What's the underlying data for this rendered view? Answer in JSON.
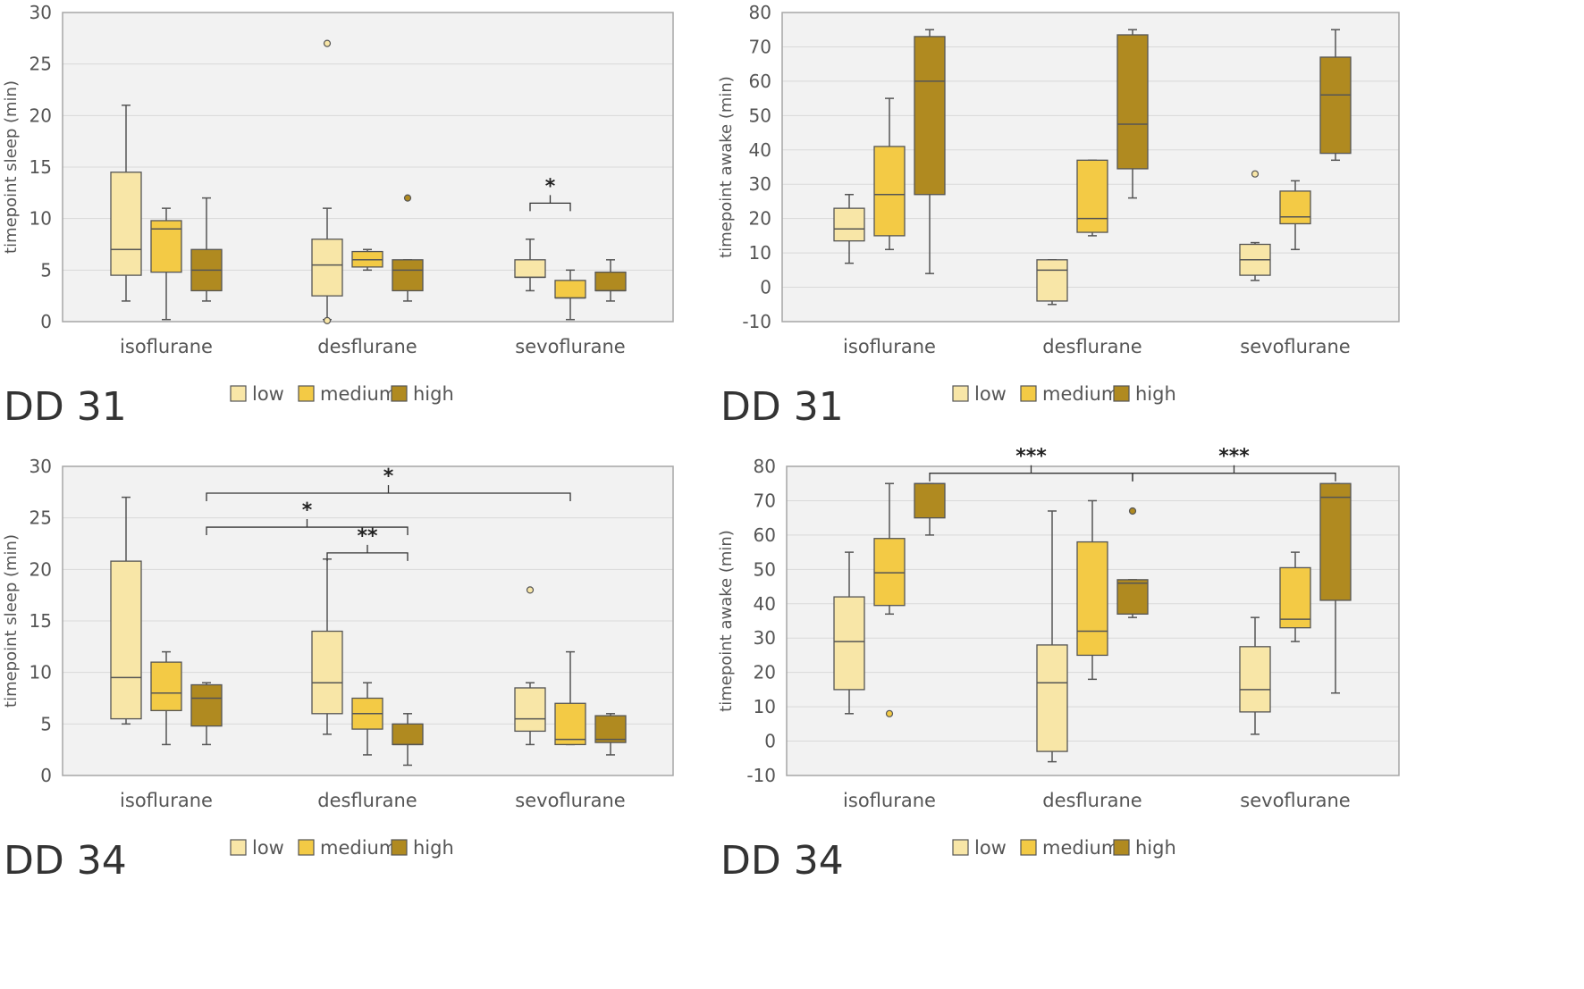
{
  "chart_data": [
    {
      "type": "box",
      "panel_label": "DD 31",
      "ylabel": "timepoint sleep  (min)",
      "ylim": [
        0,
        30
      ],
      "yticks": [
        0,
        5,
        10,
        15,
        20,
        25,
        30
      ],
      "categories": [
        "isoflurane",
        "desflurane",
        "sevoflurane"
      ],
      "series": [
        {
          "name": "low",
          "boxes": [
            {
              "min": 2,
              "q1": 4.5,
              "median": 7,
              "q3": 14.5,
              "max": 21,
              "outliers": []
            },
            {
              "min": 0.2,
              "q1": 2.5,
              "median": 5.5,
              "q3": 8,
              "max": 11,
              "outliers": [
                27,
                0.1
              ]
            },
            {
              "min": 3,
              "q1": 4.3,
              "median": 4.3,
              "q3": 6,
              "max": 8,
              "outliers": []
            }
          ]
        },
        {
          "name": "medium",
          "boxes": [
            {
              "min": 0.2,
              "q1": 4.8,
              "median": 9,
              "q3": 9.8,
              "max": 11,
              "outliers": []
            },
            {
              "min": 5,
              "q1": 5.3,
              "median": 6,
              "q3": 6.8,
              "max": 7,
              "outliers": []
            },
            {
              "min": 0.2,
              "q1": 2.3,
              "median": 2.3,
              "q3": 4,
              "max": 5,
              "outliers": []
            }
          ]
        },
        {
          "name": "high",
          "boxes": [
            {
              "min": 2,
              "q1": 3,
              "median": 5,
              "q3": 7,
              "max": 12,
              "outliers": []
            },
            {
              "min": 2,
              "q1": 3,
              "median": 5,
              "q3": 6,
              "max": 6,
              "outliers": [
                12
              ]
            },
            {
              "min": 2,
              "q1": 3,
              "median": 3,
              "q3": 4.8,
              "max": 6,
              "outliers": []
            }
          ]
        }
      ],
      "significance": [
        {
          "label": "*",
          "from": [
            2,
            0
          ],
          "to": [
            2,
            1
          ],
          "level": 11.5
        }
      ]
    },
    {
      "type": "box",
      "panel_label": "DD 31",
      "ylabel": "timepoint awake  (min)",
      "ylim": [
        -10,
        80
      ],
      "yticks": [
        -10,
        0,
        10,
        20,
        30,
        40,
        50,
        60,
        70,
        80
      ],
      "categories": [
        "isoflurane",
        "desflurane",
        "sevoflurane"
      ],
      "series": [
        {
          "name": "low",
          "boxes": [
            {
              "min": 7,
              "q1": 13.5,
              "median": 17,
              "q3": 23,
              "max": 27,
              "outliers": []
            },
            {
              "min": -5,
              "q1": -4,
              "median": 5,
              "q3": 8,
              "max": 8,
              "outliers": []
            },
            {
              "min": 2,
              "q1": 3.5,
              "median": 8,
              "q3": 12.5,
              "max": 13,
              "outliers": [
                33
              ]
            }
          ]
        },
        {
          "name": "medium",
          "boxes": [
            {
              "min": 11,
              "q1": 15,
              "median": 27,
              "q3": 41,
              "max": 55,
              "outliers": []
            },
            {
              "min": 15,
              "q1": 16,
              "median": 20,
              "q3": 37,
              "max": 37,
              "outliers": []
            },
            {
              "min": 11,
              "q1": 18.5,
              "median": 20.5,
              "q3": 28,
              "max": 31,
              "outliers": []
            }
          ]
        },
        {
          "name": "high",
          "boxes": [
            {
              "min": 4,
              "q1": 27,
              "median": 60,
              "q3": 73,
              "max": 75,
              "outliers": []
            },
            {
              "min": 26,
              "q1": 34.5,
              "median": 47.5,
              "q3": 73.5,
              "max": 75,
              "outliers": []
            },
            {
              "min": 37,
              "q1": 39,
              "median": 56,
              "q3": 67,
              "max": 75,
              "outliers": []
            }
          ]
        }
      ],
      "significance": []
    },
    {
      "type": "box",
      "panel_label": "DD 34",
      "ylabel": "timepoint sleep  (min)",
      "ylim": [
        0,
        30
      ],
      "yticks": [
        0,
        5,
        10,
        15,
        20,
        25,
        30
      ],
      "categories": [
        "isoflurane",
        "desflurane",
        "sevoflurane"
      ],
      "series": [
        {
          "name": "low",
          "boxes": [
            {
              "min": 5,
              "q1": 5.5,
              "median": 9.5,
              "q3": 20.8,
              "max": 27,
              "outliers": []
            },
            {
              "min": 4,
              "q1": 6,
              "median": 9,
              "q3": 14,
              "max": 21,
              "outliers": []
            },
            {
              "min": 3,
              "q1": 4.3,
              "median": 5.5,
              "q3": 8.5,
              "max": 9,
              "outliers": [
                18
              ]
            }
          ]
        },
        {
          "name": "medium",
          "boxes": [
            {
              "min": 3,
              "q1": 6.3,
              "median": 8,
              "q3": 11,
              "max": 12,
              "outliers": []
            },
            {
              "min": 2,
              "q1": 4.5,
              "median": 6,
              "q3": 7.5,
              "max": 9,
              "outliers": []
            },
            {
              "min": 3,
              "q1": 3,
              "median": 3.5,
              "q3": 7,
              "max": 12,
              "outliers": []
            }
          ]
        },
        {
          "name": "high",
          "boxes": [
            {
              "min": 3,
              "q1": 4.8,
              "median": 7.5,
              "q3": 8.8,
              "max": 9,
              "outliers": []
            },
            {
              "min": 1,
              "q1": 3,
              "median": 3,
              "q3": 5,
              "max": 6,
              "outliers": []
            },
            {
              "min": 2,
              "q1": 3.2,
              "median": 3.5,
              "q3": 5.8,
              "max": 6,
              "outliers": []
            }
          ]
        }
      ],
      "significance": [
        {
          "label": "*",
          "from": [
            0,
            2
          ],
          "to": [
            2,
            1
          ],
          "level": 27.4
        },
        {
          "label": "*",
          "from": [
            0,
            2
          ],
          "to": [
            1,
            2
          ],
          "level": 24.1
        },
        {
          "label": "**",
          "from": [
            1,
            0
          ],
          "to": [
            1,
            2
          ],
          "level": 21.6
        }
      ]
    },
    {
      "type": "box",
      "panel_label": "DD 34",
      "ylabel": "timepoint awake  (min)",
      "ylim": [
        -10,
        80
      ],
      "yticks": [
        -10,
        0,
        10,
        20,
        30,
        40,
        50,
        60,
        70,
        80
      ],
      "categories": [
        "isoflurane",
        "desflurane",
        "sevoflurane"
      ],
      "series": [
        {
          "name": "low",
          "boxes": [
            {
              "min": 8,
              "q1": 15,
              "median": 29,
              "q3": 42,
              "max": 55,
              "outliers": []
            },
            {
              "min": -6,
              "q1": -3,
              "median": 17,
              "q3": 28,
              "max": 67,
              "outliers": []
            },
            {
              "min": 2,
              "q1": 8.5,
              "median": 15,
              "q3": 27.5,
              "max": 36,
              "outliers": []
            }
          ]
        },
        {
          "name": "medium",
          "boxes": [
            {
              "min": 37,
              "q1": 39.5,
              "median": 49,
              "q3": 59,
              "max": 75,
              "outliers": [
                8
              ]
            },
            {
              "min": 18,
              "q1": 25,
              "median": 32,
              "q3": 58,
              "max": 70,
              "outliers": []
            },
            {
              "min": 29,
              "q1": 33,
              "median": 35.5,
              "q3": 50.5,
              "max": 55,
              "outliers": []
            }
          ]
        },
        {
          "name": "high",
          "boxes": [
            {
              "min": 60,
              "q1": 65,
              "median": 75,
              "q3": 75,
              "max": 75,
              "outliers": []
            },
            {
              "min": 36,
              "q1": 37,
              "median": 46,
              "q3": 47,
              "max": 47,
              "outliers": [
                67
              ]
            },
            {
              "min": 14,
              "q1": 41,
              "median": 71,
              "q3": 75,
              "max": 75,
              "outliers": []
            }
          ]
        }
      ],
      "significance": [
        {
          "label": "***",
          "from": [
            0,
            2
          ],
          "to": [
            1,
            2
          ],
          "level": 78
        },
        {
          "label": "***",
          "from": [
            1,
            2
          ],
          "to": [
            2,
            2
          ],
          "level": 78
        }
      ]
    }
  ],
  "legend": {
    "entries": [
      "low",
      "medium",
      "high"
    ]
  },
  "colors": {
    "low": "#f8e6a7",
    "medium": "#f3ca45",
    "high": "#b08a20",
    "plot_bg": "#f2f2f2",
    "grid": "#d9d9d9",
    "frame": "#a6a6a6",
    "whisker": "#555555"
  }
}
